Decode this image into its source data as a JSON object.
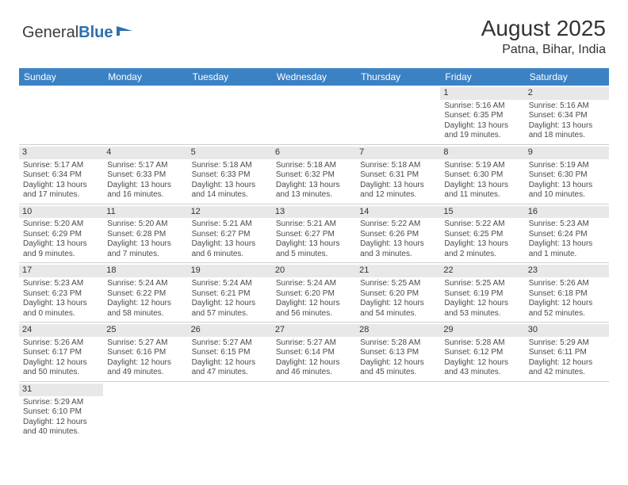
{
  "logo": {
    "text1": "General",
    "text2": "Blue"
  },
  "title": "August 2025",
  "location": "Patna, Bihar, India",
  "colors": {
    "header_bg": "#3b82c4",
    "header_text": "#ffffff",
    "daynum_bg": "#e8e8e8",
    "border": "#cfcfcf",
    "body_text": "#4a4a4a"
  },
  "weekdays": [
    "Sunday",
    "Monday",
    "Tuesday",
    "Wednesday",
    "Thursday",
    "Friday",
    "Saturday"
  ],
  "grid": [
    [
      null,
      null,
      null,
      null,
      null,
      {
        "n": "1",
        "sr": "5:16 AM",
        "ss": "6:35 PM",
        "dl": "13 hours and 19 minutes."
      },
      {
        "n": "2",
        "sr": "5:16 AM",
        "ss": "6:34 PM",
        "dl": "13 hours and 18 minutes."
      }
    ],
    [
      {
        "n": "3",
        "sr": "5:17 AM",
        "ss": "6:34 PM",
        "dl": "13 hours and 17 minutes."
      },
      {
        "n": "4",
        "sr": "5:17 AM",
        "ss": "6:33 PM",
        "dl": "13 hours and 16 minutes."
      },
      {
        "n": "5",
        "sr": "5:18 AM",
        "ss": "6:33 PM",
        "dl": "13 hours and 14 minutes."
      },
      {
        "n": "6",
        "sr": "5:18 AM",
        "ss": "6:32 PM",
        "dl": "13 hours and 13 minutes."
      },
      {
        "n": "7",
        "sr": "5:18 AM",
        "ss": "6:31 PM",
        "dl": "13 hours and 12 minutes."
      },
      {
        "n": "8",
        "sr": "5:19 AM",
        "ss": "6:30 PM",
        "dl": "13 hours and 11 minutes."
      },
      {
        "n": "9",
        "sr": "5:19 AM",
        "ss": "6:30 PM",
        "dl": "13 hours and 10 minutes."
      }
    ],
    [
      {
        "n": "10",
        "sr": "5:20 AM",
        "ss": "6:29 PM",
        "dl": "13 hours and 9 minutes."
      },
      {
        "n": "11",
        "sr": "5:20 AM",
        "ss": "6:28 PM",
        "dl": "13 hours and 7 minutes."
      },
      {
        "n": "12",
        "sr": "5:21 AM",
        "ss": "6:27 PM",
        "dl": "13 hours and 6 minutes."
      },
      {
        "n": "13",
        "sr": "5:21 AM",
        "ss": "6:27 PM",
        "dl": "13 hours and 5 minutes."
      },
      {
        "n": "14",
        "sr": "5:22 AM",
        "ss": "6:26 PM",
        "dl": "13 hours and 3 minutes."
      },
      {
        "n": "15",
        "sr": "5:22 AM",
        "ss": "6:25 PM",
        "dl": "13 hours and 2 minutes."
      },
      {
        "n": "16",
        "sr": "5:23 AM",
        "ss": "6:24 PM",
        "dl": "13 hours and 1 minute."
      }
    ],
    [
      {
        "n": "17",
        "sr": "5:23 AM",
        "ss": "6:23 PM",
        "dl": "13 hours and 0 minutes."
      },
      {
        "n": "18",
        "sr": "5:24 AM",
        "ss": "6:22 PM",
        "dl": "12 hours and 58 minutes."
      },
      {
        "n": "19",
        "sr": "5:24 AM",
        "ss": "6:21 PM",
        "dl": "12 hours and 57 minutes."
      },
      {
        "n": "20",
        "sr": "5:24 AM",
        "ss": "6:20 PM",
        "dl": "12 hours and 56 minutes."
      },
      {
        "n": "21",
        "sr": "5:25 AM",
        "ss": "6:20 PM",
        "dl": "12 hours and 54 minutes."
      },
      {
        "n": "22",
        "sr": "5:25 AM",
        "ss": "6:19 PM",
        "dl": "12 hours and 53 minutes."
      },
      {
        "n": "23",
        "sr": "5:26 AM",
        "ss": "6:18 PM",
        "dl": "12 hours and 52 minutes."
      }
    ],
    [
      {
        "n": "24",
        "sr": "5:26 AM",
        "ss": "6:17 PM",
        "dl": "12 hours and 50 minutes."
      },
      {
        "n": "25",
        "sr": "5:27 AM",
        "ss": "6:16 PM",
        "dl": "12 hours and 49 minutes."
      },
      {
        "n": "26",
        "sr": "5:27 AM",
        "ss": "6:15 PM",
        "dl": "12 hours and 47 minutes."
      },
      {
        "n": "27",
        "sr": "5:27 AM",
        "ss": "6:14 PM",
        "dl": "12 hours and 46 minutes."
      },
      {
        "n": "28",
        "sr": "5:28 AM",
        "ss": "6:13 PM",
        "dl": "12 hours and 45 minutes."
      },
      {
        "n": "29",
        "sr": "5:28 AM",
        "ss": "6:12 PM",
        "dl": "12 hours and 43 minutes."
      },
      {
        "n": "30",
        "sr": "5:29 AM",
        "ss": "6:11 PM",
        "dl": "12 hours and 42 minutes."
      }
    ],
    [
      {
        "n": "31",
        "sr": "5:29 AM",
        "ss": "6:10 PM",
        "dl": "12 hours and 40 minutes."
      },
      null,
      null,
      null,
      null,
      null,
      null
    ]
  ],
  "labels": {
    "sunrise": "Sunrise: ",
    "sunset": "Sunset: ",
    "daylight": "Daylight: "
  }
}
